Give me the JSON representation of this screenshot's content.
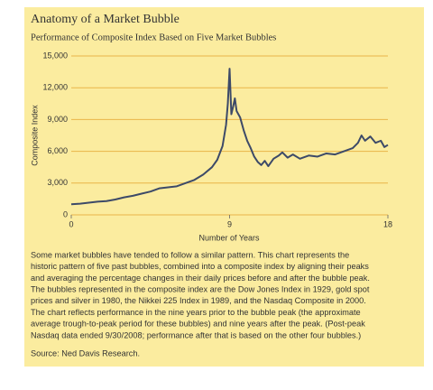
{
  "chart_data": {
    "type": "line",
    "title": "Anatomy of a Market Bubble",
    "subtitle": "Performance of Composite Index Based on Five Market Bubbles",
    "x_label": "Number of Years",
    "y_label": "Composite Index",
    "x": [
      0,
      0.5,
      1,
      1.5,
      2,
      2.5,
      3,
      3.5,
      4,
      4.5,
      5,
      5.5,
      6,
      6.5,
      7,
      7.5,
      8,
      8.3,
      8.6,
      8.8,
      8.9,
      9,
      9.1,
      9.2,
      9.3,
      9.4,
      9.6,
      9.8,
      10,
      10.2,
      10.4,
      10.6,
      10.8,
      11,
      11.2,
      11.5,
      11.8,
      12,
      12.3,
      12.6,
      13,
      13.5,
      14,
      14.5,
      15,
      15.5,
      16,
      16.3,
      16.5,
      16.7,
      17,
      17.3,
      17.6,
      17.8,
      18
    ],
    "values": [
      1000,
      1050,
      1150,
      1250,
      1300,
      1450,
      1650,
      1800,
      2000,
      2200,
      2500,
      2600,
      2700,
      3000,
      3300,
      3800,
      4500,
      5200,
      6500,
      8500,
      10500,
      13800,
      9500,
      10200,
      11000,
      9800,
      9200,
      8000,
      7000,
      6300,
      5500,
      5000,
      4700,
      5100,
      4600,
      5300,
      5600,
      5900,
      5400,
      5700,
      5300,
      5600,
      5500,
      5800,
      5700,
      6000,
      6300,
      6800,
      7500,
      7000,
      7400,
      6800,
      7000,
      6400,
      6600
    ],
    "color": "#3d4a68",
    "xlim": [
      0,
      18
    ],
    "xticks": [
      0,
      9,
      18
    ],
    "ylim": [
      0,
      15000
    ],
    "yticks": [
      0,
      {
        "value": 3000,
        "label": "3,000"
      },
      {
        "value": 6000,
        "label": "6,000"
      },
      {
        "value": 9000,
        "label": "9,000"
      },
      {
        "value": 12000,
        "label": "12,000"
      },
      {
        "value": 15000,
        "label": "15,000"
      }
    ],
    "grid": true,
    "caption": [
      "Some market bubbles have tended to follow a similar pattern. This chart represents the",
      "historic pattern of five past bubbles, combined into a composite index by aligning their peaks",
      "and averaging the percentage changes in their daily prices before and after the bubble peak.",
      "The bubbles represented in the composite index are the Dow Jones Index in 1929, gold spot",
      "prices and silver in 1980, the Nikkei 225 Index in 1989, and the Nasdaq Composite in 2000.",
      "The chart reflects performance in the nine years prior to the bubble peak (the approximate",
      "average trough-to-peak period for these bubbles) and nine years after the peak. (Post-peak",
      "Nasdaq data ended 9/30/2008; performance after that is based on the other four bubbles.)"
    ],
    "source": "Source: Ned Davis Research."
  }
}
